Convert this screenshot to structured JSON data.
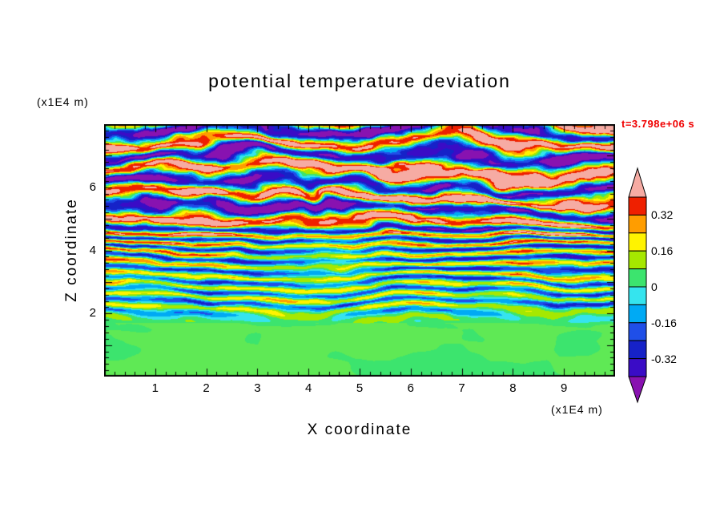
{
  "title": "potential temperature deviation",
  "timestamp": {
    "text": "t=3.798e+06 s",
    "color": "#f00000"
  },
  "axes": {
    "x": {
      "label": "X coordinate",
      "units": "(x1E4 m)",
      "min": 0,
      "max": 10,
      "tick_labels": [
        1,
        2,
        3,
        4,
        5,
        6,
        7,
        8,
        9
      ],
      "major_tick_step": 1,
      "minor_tick_step": 0.2
    },
    "z": {
      "label": "Z coordinate",
      "units": "(x1E4 m)",
      "min": 0,
      "max": 8,
      "tick_labels": [
        2,
        4,
        6
      ],
      "major_tick_step": 1,
      "minor_tick_step": 0.2
    }
  },
  "chart_data": {
    "type": "heatmap",
    "subtype": "filled_contour",
    "title": "potential temperature deviation",
    "xlabel": "X coordinate (x1E4 m)",
    "ylabel": "Z coordinate (x1E4 m)",
    "time_label": "t=3.798e+06 s",
    "x_range": [
      0,
      10
    ],
    "z_range": [
      0,
      8
    ],
    "contour_interval": 0.08,
    "level_min": -0.4,
    "level_max": 0.4,
    "colors_low_to_high": [
      "#8812b0",
      "#3a0cc6",
      "#1622c8",
      "#1f4fe8",
      "#00aaf4",
      "#35e4ee",
      "#3ce46e",
      "#a6e800",
      "#fff300",
      "#ff9d00",
      "#ef2000",
      "#f6aba3"
    ],
    "colorbar_labels": [
      {
        "text": "0.32",
        "value": 0.32
      },
      {
        "text": "0.16",
        "value": 0.16
      },
      {
        "text": "0",
        "value": 0
      },
      {
        "text": "-0.16",
        "value": -0.16
      },
      {
        "text": "-0.32",
        "value": -0.32
      }
    ],
    "field_structure": [
      {
        "z_range": [
          0,
          1.8
        ],
        "description": "well-mixed surface layer: deviation near zero, broad green blobs (0 to +0.08) with lighter-green patches and rare cyan specks"
      },
      {
        "z_range": [
          1.8,
          4.6
        ],
        "description": "fine turbulent layering: thin alternating horizontal streaks spanning cyan/blue/navy (negative) to yellow/orange/red (positive); calmer green pockets near x=4.3 z=3.6, x=0.9 z=2.9, x=7.7 z=2.5"
      },
      {
        "z_range": [
          4.6,
          8
        ],
        "description": "strong stratified wave layers: thick undulating bands saturating the scale, salmon (> +0.40) alternating with purple (< -0.40) separated by thin red/yellow and cyan/navy fringes"
      }
    ],
    "render": {
      "seed": 7,
      "amp_profile": [
        [
          0,
          0.045
        ],
        [
          1.6,
          0.045
        ],
        [
          2.2,
          0.27
        ],
        [
          4.4,
          0.42
        ],
        [
          5.1,
          0.57
        ],
        [
          8,
          0.57
        ]
      ],
      "freq_profile": [
        [
          0,
          1.4
        ],
        [
          1.9,
          1.4
        ],
        [
          2.3,
          3.1
        ],
        [
          4.5,
          3.1
        ],
        [
          4.9,
          1.15
        ],
        [
          8,
          1.15
        ]
      ],
      "surface_offset": 0.045,
      "green_split": 0.042,
      "green_light": "#5fe955",
      "calm_pockets": [
        [
          4.3,
          3.6,
          1.3,
          0.9,
          0.6
        ],
        [
          0.9,
          2.9,
          0.8,
          0.5,
          0.45
        ],
        [
          7.7,
          2.5,
          0.9,
          0.5,
          0.4
        ]
      ]
    }
  },
  "frame_color": "#000000",
  "background_color": "#ffffff"
}
